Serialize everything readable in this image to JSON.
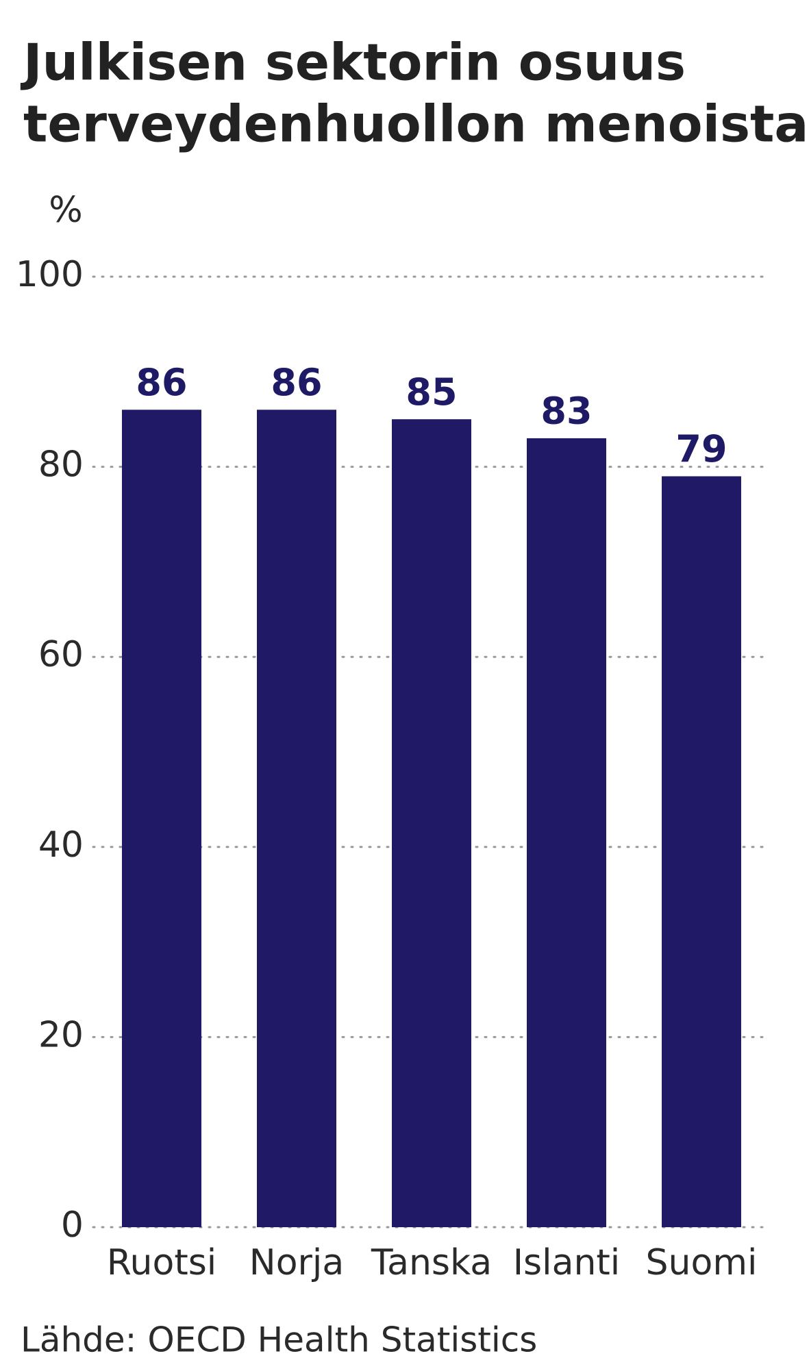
{
  "chart_data": {
    "type": "bar",
    "title": [
      "Julkisen sektorin osuus",
      "terveydenhuollon menoista"
    ],
    "y_label": "%",
    "categories": [
      "Ruotsi",
      "Norja",
      "Tanska",
      "Islanti",
      "Suomi"
    ],
    "values": [
      86,
      86,
      85,
      83,
      79
    ],
    "color": "#201a66",
    "ylim": [
      0,
      100
    ],
    "yticks": [
      0,
      20,
      40,
      60,
      80,
      100
    ],
    "grid": true,
    "source": "Lähde: OECD Health Statistics"
  }
}
